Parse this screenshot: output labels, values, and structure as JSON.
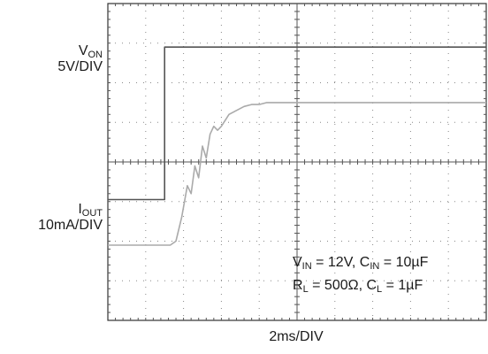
{
  "labels": {
    "von_main": "V",
    "von_sub": "ON",
    "von_scale": "5V/DIV",
    "iout_main": "I",
    "iout_sub": "OUT",
    "iout_scale": "10mA/DIV",
    "x_scale": "2ms/DIV"
  },
  "conditions": {
    "l1_a": "V",
    "l1_a_sub": "IN",
    "l1_b": " = 12V, C",
    "l1_b_sub": "IN",
    "l1_c": " = 10µF",
    "l2_a": "R",
    "l2_a_sub": "L",
    "l2_b": " = 500Ω, C",
    "l2_b_sub": "L",
    "l2_c": " = 1µF"
  },
  "chart_data": {
    "type": "line",
    "title": "",
    "grid": true,
    "x_divisions": 10,
    "y_divisions": 8,
    "xlabel": "2ms/DIV",
    "xlim": [
      0,
      20
    ],
    "x_unit": "ms",
    "series": [
      {
        "name": "VON",
        "label": "VON 5V/DIV",
        "color": "#555555",
        "x": [
          0,
          3.0,
          3.0,
          20
        ],
        "y_div": [
          3.05,
          3.05,
          6.9,
          6.9
        ]
      },
      {
        "name": "IOUT",
        "label": "IOUT 10mA/DIV",
        "color": "#aaaaaa",
        "x": [
          0,
          3.3,
          3.6,
          3.9,
          4.2,
          4.4,
          4.6,
          4.8,
          5.0,
          5.2,
          5.4,
          5.6,
          5.8,
          6.0,
          6.4,
          6.8,
          7.2,
          7.6,
          8.0,
          8.4,
          20
        ],
        "y_div": [
          1.9,
          1.9,
          2.0,
          2.6,
          3.4,
          3.2,
          3.9,
          3.6,
          4.4,
          4.1,
          4.7,
          4.9,
          4.8,
          4.9,
          5.2,
          5.3,
          5.4,
          5.45,
          5.45,
          5.5,
          5.5
        ]
      }
    ]
  }
}
